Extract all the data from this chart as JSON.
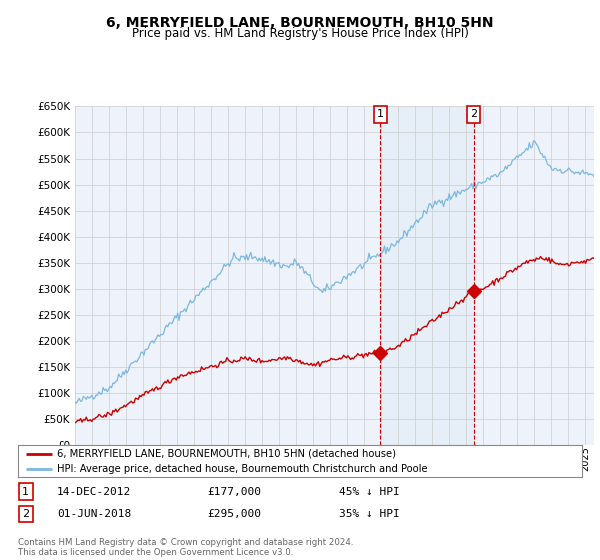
{
  "title": "6, MERRYFIELD LANE, BOURNEMOUTH, BH10 5HN",
  "subtitle": "Price paid vs. HM Land Registry's House Price Index (HPI)",
  "ylim": [
    0,
    650000
  ],
  "yticks": [
    0,
    50000,
    100000,
    150000,
    200000,
    250000,
    300000,
    350000,
    400000,
    450000,
    500000,
    550000,
    600000,
    650000
  ],
  "xlim_start": 1995.0,
  "xlim_end": 2025.5,
  "background_color": "#ffffff",
  "plot_bg_color": "#eef2fb",
  "grid_color": "#cccccc",
  "hpi_color": "#7ab8df",
  "price_color": "#cc0000",
  "shade_color": "#d8e8f5",
  "sale1_x": 2012.95,
  "sale1_y": 177000,
  "sale2_x": 2018.42,
  "sale2_y": 295000,
  "sale1_label": "1",
  "sale2_label": "2",
  "legend_line1": "6, MERRYFIELD LANE, BOURNEMOUTH, BH10 5HN (detached house)",
  "legend_line2": "HPI: Average price, detached house, Bournemouth Christchurch and Poole",
  "annotation1_date": "14-DEC-2012",
  "annotation1_price": "£177,000",
  "annotation1_hpi": "45% ↓ HPI",
  "annotation2_date": "01-JUN-2018",
  "annotation2_price": "£295,000",
  "annotation2_hpi": "35% ↓ HPI",
  "footer": "Contains HM Land Registry data © Crown copyright and database right 2024.\nThis data is licensed under the Open Government Licence v3.0."
}
